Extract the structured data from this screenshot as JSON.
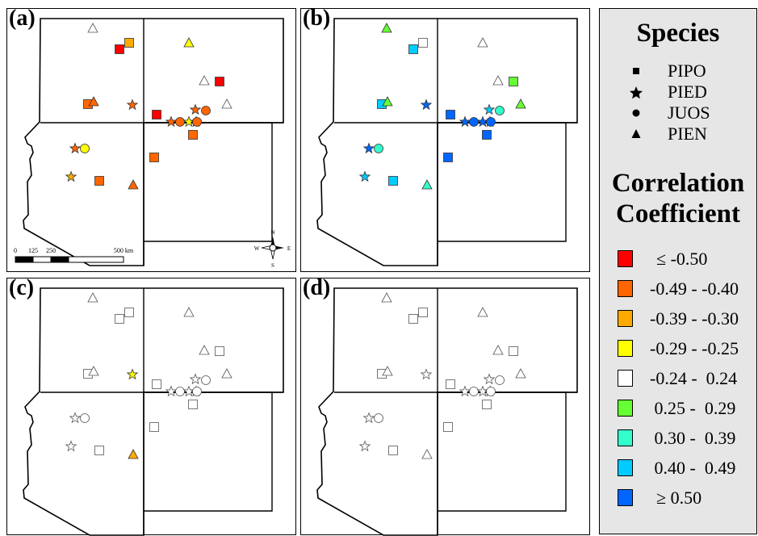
{
  "colors": {
    "c1": "#ff0000",
    "c2": "#ff6600",
    "c3": "#ffaa00",
    "c4": "#ffff00",
    "c5": "#ffffff",
    "c6": "#66ff33",
    "c7": "#33ffcc",
    "c8": "#00ccff",
    "c9": "#0066ff"
  },
  "legend": {
    "species_title": "Species",
    "species": [
      {
        "code": "PIPO",
        "symbol": "square"
      },
      {
        "code": "PIED",
        "symbol": "star"
      },
      {
        "code": "JUOS",
        "symbol": "circle"
      },
      {
        "code": "PIEN",
        "symbol": "triangle"
      }
    ],
    "corr_title_1": "Correlation",
    "corr_title_2": "Coefficient",
    "classes": [
      {
        "key": "c1",
        "label": "≤ -0.50"
      },
      {
        "key": "c2",
        "label": "-0.49 - -0.40"
      },
      {
        "key": "c3",
        "label": "-0.39 - -0.30"
      },
      {
        "key": "c4",
        "label": "-0.29 - -0.25"
      },
      {
        "key": "c5",
        "label": "-0.24 -  0.24"
      },
      {
        "key": "c6",
        "label": " 0.25 -  0.29"
      },
      {
        "key": "c7",
        "label": " 0.30 -  0.39"
      },
      {
        "key": "c8",
        "label": " 0.40 -  0.49"
      },
      {
        "key": "c9",
        "label": "≥ 0.50"
      }
    ]
  },
  "scalebar": {
    "labels": [
      "0",
      "125",
      "250",
      "500 km"
    ]
  },
  "compass": {
    "n": "N",
    "s": "S",
    "e": "E",
    "w": "W"
  },
  "sites": [
    {
      "sp": "triangle"
    },
    {
      "sp": "square"
    },
    {
      "sp": "square"
    },
    {
      "sp": "triangle"
    },
    {
      "sp": "triangle"
    },
    {
      "sp": "square"
    },
    {
      "sp": "square"
    },
    {
      "sp": "triangle"
    },
    {
      "sp": "star"
    },
    {
      "sp": "square"
    },
    {
      "sp": "star"
    },
    {
      "sp": "circle"
    },
    {
      "sp": "triangle"
    },
    {
      "sp": "star"
    },
    {
      "sp": "circle"
    },
    {
      "sp": "star"
    },
    {
      "sp": "star"
    },
    {
      "sp": "circle"
    },
    {
      "sp": "square"
    },
    {
      "sp": "star"
    },
    {
      "sp": "circle"
    },
    {
      "sp": "square"
    },
    {
      "sp": "star"
    },
    {
      "sp": "square"
    },
    {
      "sp": "triangle"
    }
  ],
  "panels": [
    {
      "id": "a",
      "label": "(a)",
      "show_scale": true,
      "classes": [
        "c5",
        "c3",
        "c1",
        "c4",
        "c5",
        "c1",
        "c2",
        "c2",
        "c2",
        "c1",
        "c2",
        "c2",
        "c5",
        "c2",
        "c2",
        "c4",
        "c2",
        "c2",
        "c2",
        "c2",
        "c4",
        "c2",
        "c3",
        "c2",
        "c2"
      ]
    },
    {
      "id": "b",
      "label": "(b)",
      "show_scale": false,
      "classes": [
        "c6",
        "c5",
        "c8",
        "c5",
        "c5",
        "c6",
        "c8",
        "c6",
        "c9",
        "c9",
        "c8",
        "c7",
        "c6",
        "c9",
        "c9",
        "c9",
        "c9",
        "c9",
        "c9",
        "c9",
        "c7",
        "c9",
        "c8",
        "c8",
        "c7"
      ]
    },
    {
      "id": "c",
      "label": "(c)",
      "show_scale": false,
      "classes": [
        "c5",
        "c5",
        "c5",
        "c5",
        "c5",
        "c5",
        "c5",
        "c5",
        "c4",
        "c5",
        "c5",
        "c5",
        "c5",
        "c5",
        "c5",
        "c5",
        "c5",
        "c5",
        "c5",
        "c5",
        "c5",
        "c5",
        "c5",
        "c5",
        "c3"
      ]
    },
    {
      "id": "d",
      "label": "(d)",
      "show_scale": false,
      "classes": [
        "c5",
        "c5",
        "c5",
        "c5",
        "c5",
        "c5",
        "c5",
        "c5",
        "c5",
        "c5",
        "c5",
        "c5",
        "c5",
        "c5",
        "c5",
        "c5",
        "c5",
        "c5",
        "c5",
        "c5",
        "c5",
        "c5",
        "c5",
        "c5",
        "c5"
      ]
    }
  ]
}
